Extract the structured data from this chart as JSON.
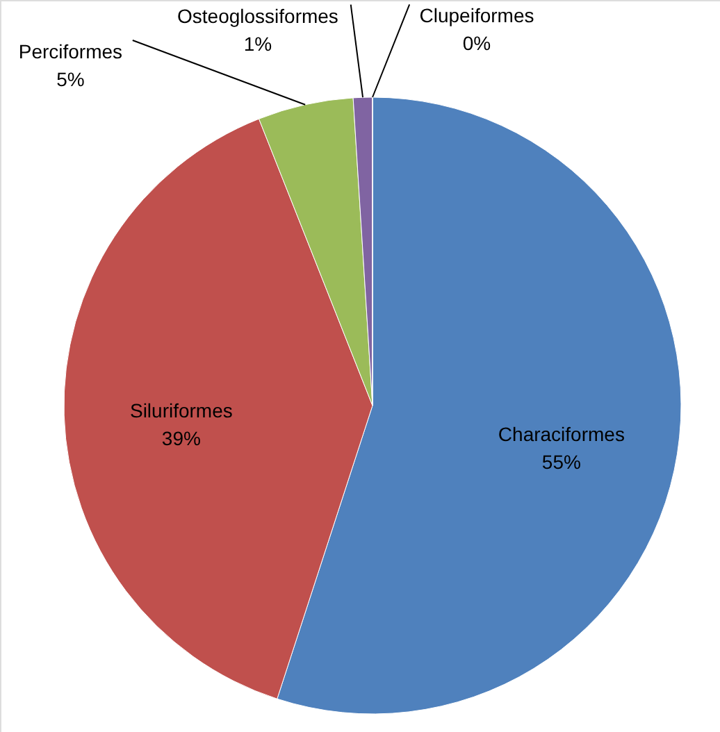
{
  "chart_data": {
    "type": "pie",
    "categories": [
      "Characiformes",
      "Siluriformes",
      "Perciformes",
      "Osteoglossiformes",
      "Clupeiformes"
    ],
    "values": [
      55,
      39,
      5,
      1,
      0
    ],
    "value_labels": [
      "55%",
      "39%",
      "5%",
      "1%",
      "0%"
    ],
    "colors": [
      "#4f81bd",
      "#c0504d",
      "#9bbb59",
      "#8064a2",
      "#4bacc6"
    ]
  }
}
